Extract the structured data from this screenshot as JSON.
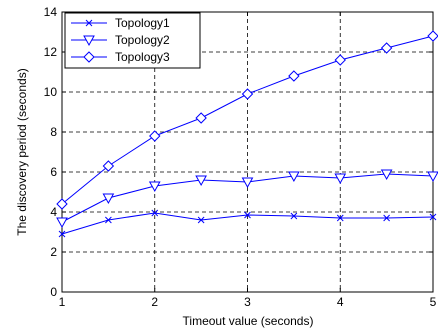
{
  "colors": {
    "series": "#0000ff",
    "axes": "#000000",
    "grid": "#000000",
    "background": "#ffffff"
  },
  "chart_data": {
    "type": "line",
    "title": "",
    "xlabel": "Timeout value (seconds)",
    "ylabel": "The discovery period (seconds)",
    "xlim": [
      1,
      5
    ],
    "ylim": [
      0,
      14
    ],
    "xticks": [
      1,
      2,
      3,
      4,
      5
    ],
    "yticks": [
      0,
      2,
      4,
      6,
      8,
      10,
      12,
      14
    ],
    "grid": true,
    "grid_style": "dashed",
    "legend_position": "top-left",
    "x": [
      1,
      1.5,
      2,
      2.5,
      3,
      3.5,
      4,
      4.5,
      5
    ],
    "series": [
      {
        "name": "Topology1",
        "marker": "x",
        "values": [
          2.9,
          3.6,
          3.95,
          3.6,
          3.85,
          3.8,
          3.7,
          3.7,
          3.75
        ]
      },
      {
        "name": "Topology2",
        "marker": "triangle-down",
        "values": [
          3.5,
          4.7,
          5.3,
          5.6,
          5.5,
          5.8,
          5.7,
          5.9,
          5.8
        ]
      },
      {
        "name": "Topology3",
        "marker": "diamond",
        "values": [
          4.4,
          6.3,
          7.8,
          8.7,
          9.9,
          10.8,
          11.6,
          12.2,
          12.8
        ]
      }
    ]
  }
}
